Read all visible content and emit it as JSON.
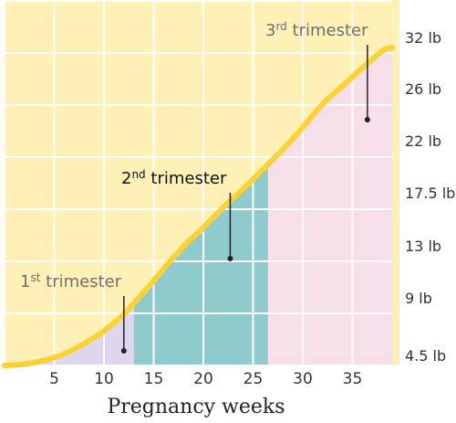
{
  "chart_data": {
    "type": "area",
    "xlabel": "Pregnancy weeks",
    "xlim": [
      0,
      39
    ],
    "x_ticks": [
      5,
      10,
      15,
      20,
      25,
      30,
      35
    ],
    "y_ticks": [
      "4.5 lb",
      "9 lb",
      "13 lb",
      "17.5 lb",
      "22 lb",
      "26 lb",
      "32 lb"
    ],
    "grid": true,
    "series": [
      {
        "x": [
          0,
          2,
          4,
          6,
          8,
          10,
          12,
          14,
          16,
          18,
          20,
          22,
          24,
          26,
          28,
          30,
          32,
          34,
          36,
          38,
          39
        ],
        "values": [
          4.5,
          4.6,
          4.9,
          5.4,
          6.2,
          7.2,
          8.5,
          10.2,
          12.0,
          13.8,
          15.4,
          17.1,
          18.7,
          20.4,
          22.1,
          23.8,
          25.6,
          27.5,
          29.6,
          31.6,
          32.0
        ]
      }
    ],
    "trimesters": [
      {
        "label": "1st trimester",
        "ordinal": "1",
        "suffix": "st",
        "word": "trimester",
        "x_range": [
          0,
          13
        ],
        "pointer_x": 12,
        "color": "#ddd6ec",
        "label_color": "#707070"
      },
      {
        "label": "2nd trimester",
        "ordinal": "2",
        "suffix": "nd",
        "word": "trimester",
        "x_range": [
          13,
          26.5
        ],
        "pointer_x": 22.7,
        "color": "#8fcbcd",
        "label_color": "#111111"
      },
      {
        "label": "3rd trimester",
        "ordinal": "3",
        "suffix": "rd",
        "word": "trimester",
        "x_range": [
          26.5,
          39
        ],
        "pointer_x": 36.5,
        "color": "#f7dfe9",
        "label_color": "#707070"
      }
    ],
    "colors": {
      "background": "#fff0b6",
      "grid": "#ffffff",
      "curve": "#fbd232",
      "pointer": "#222222"
    }
  }
}
